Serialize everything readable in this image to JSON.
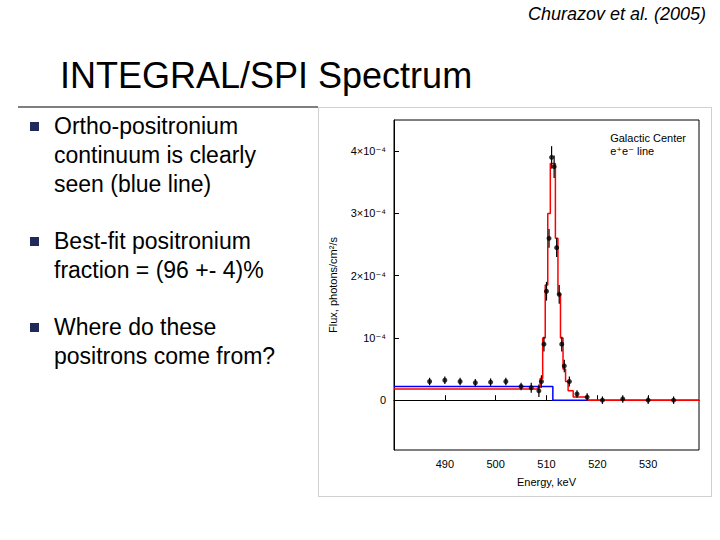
{
  "slide": {
    "citation": "Churazov et al. (2005)",
    "title": "INTEGRAL/SPI Spectrum",
    "bullets": [
      "Ortho-positronium continuum is clearly seen (blue line)",
      "Best-fit positronium fraction = (96 +- 4)%",
      "Where do these positrons come from?"
    ]
  },
  "chart_data": {
    "type": "scatter",
    "annotations": [
      "Galactic Center",
      "e⁺e⁻ line"
    ],
    "xlabel": "Energy, keV",
    "ylabel": "Flux, photons/cm²/s",
    "xlim": [
      480,
      540
    ],
    "xticks": [
      490,
      500,
      510,
      520,
      530
    ],
    "ylim": [
      -8e-05,
      0.00045
    ],
    "yticks": [
      0,
      {
        "value": 0.0001,
        "label": "10⁻⁴"
      },
      {
        "value": 0.0002,
        "label": "2×10⁻⁴"
      },
      {
        "value": 0.0003,
        "label": "3×10⁻⁴"
      },
      {
        "value": 0.0004,
        "label": "4×10⁻⁴"
      }
    ],
    "grid": false,
    "series": [
      {
        "type": "line",
        "line_style": "step",
        "color": "#0000ff",
        "x": [
          480,
          490,
          500,
          505,
          510,
          511,
          511.5,
          520,
          530,
          540
        ],
        "values": [
          2.2e-05,
          2.2e-05,
          2.2e-05,
          2.2e-05,
          2.2e-05,
          2.2e-05,
          0,
          0,
          0,
          0
        ]
      },
      {
        "type": "line",
        "line_style": "step",
        "color": "#ff0000",
        "x": [
          480,
          490,
          500,
          505,
          508,
          508.5,
          509,
          509.5,
          510,
          510.5,
          511,
          511.5,
          512,
          512.5,
          513,
          513.5,
          514,
          514.5,
          516,
          520,
          530,
          540
        ],
        "values": [
          1.8e-05,
          1.8e-05,
          1.8e-05,
          1.8e-05,
          1.8e-05,
          2e-05,
          3.5e-05,
          0.0001,
          0.000185,
          0.0003,
          0.00038,
          0.00038,
          0.00026,
          0.00017,
          0.0001,
          5e-05,
          3e-05,
          1.5e-05,
          5e-06,
          0,
          0,
          0
        ]
      },
      {
        "type": "scatter",
        "marker": "circle",
        "color": "#000000",
        "x": [
          487,
          490,
          493,
          496,
          499,
          502,
          505,
          507,
          508.5,
          509,
          509.5,
          510,
          510.5,
          511,
          511.5,
          512,
          512.5,
          513,
          513.5,
          514.5,
          516,
          518,
          521,
          525,
          530,
          535
        ],
        "values": [
          3e-05,
          3.2e-05,
          3e-05,
          2.8e-05,
          2.9e-05,
          3e-05,
          2.2e-05,
          2e-05,
          1.5e-05,
          3e-05,
          9e-05,
          0.000175,
          0.00026,
          0.00039,
          0.000375,
          0.000245,
          0.00017,
          9e-05,
          5.5e-05,
          3e-05,
          1e-05,
          5e-06,
          0,
          2e-06,
          0,
          0
        ],
        "errors": [
          6e-06,
          6e-06,
          6e-06,
          6e-06,
          6e-06,
          6e-06,
          6e-06,
          8e-06,
          1e-05,
          1e-05,
          1.2e-05,
          1.5e-05,
          1.5e-05,
          1.8e-05,
          1.8e-05,
          1.5e-05,
          1.5e-05,
          1.2e-05,
          1e-05,
          8e-06,
          6e-06,
          6e-06,
          6e-06,
          6e-06,
          6e-06,
          6e-06
        ]
      }
    ]
  }
}
